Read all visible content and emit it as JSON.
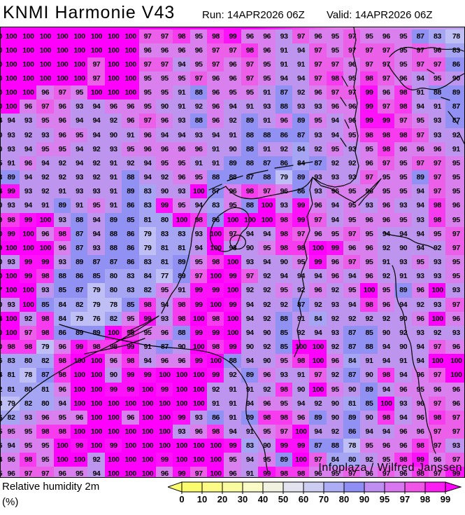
{
  "header": {
    "title": "KNMI Harmonie V43",
    "run": "Run: 14APR2026 06Z",
    "valid": "Valid: 14APR2026 06Z"
  },
  "map": {
    "attribution": "Infoplaza / Wilfred Janssen",
    "edge_digits": [
      "0",
      "0",
      "0",
      "0",
      "0",
      "0",
      "4",
      "0",
      "0",
      "5",
      "3",
      "4",
      "0",
      "9",
      "0",
      "9",
      "0",
      "0",
      "7",
      "0",
      "4",
      "0",
      "0",
      "6",
      "4",
      "2",
      "3",
      "6",
      "5",
      "6",
      "4",
      "5"
    ],
    "grid": [
      [
        100,
        100,
        100,
        100,
        100,
        100,
        100,
        100,
        97,
        97,
        98,
        95,
        98,
        99,
        96,
        96,
        93,
        97,
        96,
        95,
        97,
        95,
        96,
        95,
        87,
        83,
        78
      ],
      [
        100,
        100,
        100,
        100,
        100,
        100,
        100,
        100,
        96,
        96,
        96,
        96,
        97,
        97,
        98,
        96,
        91,
        94,
        97,
        95,
        97,
        97,
        97,
        95,
        97,
        96,
        83
      ],
      [
        100,
        100,
        100,
        100,
        100,
        97,
        100,
        100,
        97,
        97,
        94,
        95,
        97,
        96,
        97,
        95,
        91,
        91,
        97,
        97,
        96,
        97,
        97,
        95,
        97,
        97,
        86
      ],
      [
        100,
        100,
        100,
        100,
        100,
        97,
        100,
        100,
        95,
        95,
        95,
        97,
        96,
        96,
        97,
        95,
        94,
        94,
        97,
        98,
        95,
        98,
        97,
        96,
        94,
        95,
        90
      ],
      [
        100,
        100,
        96,
        97,
        95,
        100,
        100,
        100,
        95,
        95,
        91,
        88,
        96,
        95,
        95,
        91,
        87,
        92,
        96,
        97,
        97,
        99,
        96,
        98,
        91,
        88,
        89
      ],
      [
        100,
        96,
        97,
        96,
        93,
        94,
        96,
        96,
        95,
        90,
        91,
        92,
        96,
        94,
        91,
        93,
        88,
        93,
        93,
        96,
        96,
        99,
        97,
        98,
        94,
        91,
        87
      ],
      [
        94,
        93,
        95,
        96,
        94,
        94,
        92,
        96,
        97,
        96,
        93,
        88,
        96,
        92,
        89,
        91,
        96,
        89,
        95,
        94,
        96,
        99,
        99,
        97,
        95,
        93,
        87
      ],
      [
        93,
        92,
        93,
        96,
        95,
        94,
        90,
        91,
        96,
        94,
        94,
        93,
        94,
        91,
        88,
        88,
        86,
        87,
        93,
        94,
        95,
        98,
        98,
        98,
        97,
        93,
        92
      ],
      [
        93,
        94,
        95,
        95,
        94,
        92,
        93,
        95,
        96,
        96,
        96,
        96,
        91,
        90,
        88,
        91,
        92,
        84,
        92,
        95,
        93,
        95,
        98,
        96,
        96,
        96,
        91
      ],
      [
        91,
        96,
        94,
        92,
        94,
        92,
        91,
        92,
        94,
        95,
        95,
        91,
        91,
        89,
        88,
        87,
        86,
        84,
        87,
        92,
        92,
        96,
        97,
        95,
        97,
        97,
        95
      ],
      [
        89,
        94,
        92,
        92,
        93,
        92,
        91,
        88,
        94,
        92,
        96,
        95,
        88,
        88,
        87,
        88,
        79,
        89,
        93,
        93,
        93,
        97,
        95,
        95,
        89,
        97,
        95
      ],
      [
        99,
        93,
        92,
        91,
        93,
        93,
        91,
        89,
        83,
        90,
        93,
        100,
        87,
        96,
        98,
        97,
        96,
        86,
        93,
        96,
        95,
        96,
        95,
        95,
        94,
        97,
        95
      ],
      [
        93,
        94,
        91,
        89,
        91,
        95,
        91,
        86,
        83,
        99,
        95,
        94,
        83,
        95,
        88,
        100,
        93,
        99,
        96,
        94,
        95,
        93,
        96,
        93,
        94,
        98,
        96
      ],
      [
        98,
        99,
        100,
        93,
        88,
        94,
        89,
        85,
        81,
        80,
        100,
        98,
        86,
        100,
        100,
        100,
        98,
        99,
        97,
        94,
        95,
        96,
        96,
        95,
        93,
        98,
        95
      ],
      [
        99,
        100,
        96,
        98,
        87,
        94,
        88,
        86,
        79,
        83,
        83,
        93,
        100,
        97,
        94,
        94,
        98,
        97,
        96,
        95,
        97,
        95,
        94,
        94,
        94,
        95,
        97
      ],
      [
        100,
        100,
        100,
        96,
        87,
        93,
        88,
        86,
        79,
        81,
        81,
        94,
        100,
        93,
        90,
        95,
        98,
        98,
        100,
        99,
        96,
        96,
        92,
        90,
        94,
        92,
        97
      ],
      [
        93,
        99,
        99,
        93,
        89,
        87,
        87,
        86,
        83,
        81,
        89,
        95,
        98,
        100,
        93,
        94,
        90,
        95,
        99,
        96,
        97,
        95,
        91,
        93,
        95,
        93,
        95
      ],
      [
        100,
        99,
        98,
        88,
        86,
        85,
        80,
        83,
        84,
        77,
        89,
        97,
        100,
        99,
        97,
        92,
        94,
        94,
        94,
        96,
        94,
        96,
        92,
        91,
        93,
        93,
        95
      ],
      [
        100,
        100,
        93,
        85,
        87,
        79,
        80,
        83,
        82,
        95,
        91,
        99,
        99,
        100,
        92,
        92,
        95,
        92,
        96,
        92,
        95,
        100,
        95,
        89,
        96,
        100,
        93
      ],
      [
        93,
        100,
        85,
        84,
        82,
        79,
        78,
        85,
        98,
        94,
        98,
        99,
        100,
        99,
        94,
        92,
        92,
        87,
        92,
        93,
        94,
        98,
        96,
        94,
        92,
        93,
        97
      ],
      [
        100,
        92,
        98,
        84,
        79,
        76,
        82,
        95,
        99,
        93,
        98,
        100,
        98,
        100,
        94,
        92,
        88,
        91,
        84,
        92,
        92,
        92,
        92,
        90,
        96,
        100,
        96
      ],
      [
        100,
        97,
        98,
        86,
        89,
        89,
        100,
        98,
        95,
        96,
        88,
        99,
        99,
        100,
        94,
        90,
        85,
        92,
        94,
        93,
        87,
        85,
        90,
        92,
        93,
        92,
        93
      ],
      [
        98,
        98,
        79,
        96,
        99,
        98,
        98,
        99,
        91,
        87,
        90,
        100,
        98,
        99,
        90,
        92,
        85,
        100,
        100,
        92,
        87,
        88,
        94,
        90,
        94,
        97,
        96
      ],
      [
        83,
        80,
        82,
        98,
        100,
        100,
        96,
        98,
        94,
        96,
        96,
        99,
        100,
        88,
        94,
        90,
        95,
        98,
        100,
        96,
        84,
        91,
        94,
        91,
        94,
        100,
        100
      ],
      [
        81,
        78,
        87,
        98,
        100,
        100,
        90,
        99,
        99,
        100,
        100,
        100,
        99,
        92,
        89,
        96,
        93,
        91,
        97,
        92,
        87,
        90,
        98,
        94,
        96,
        97,
        100
      ],
      [
        81,
        80,
        81,
        96,
        100,
        100,
        99,
        99,
        100,
        99,
        100,
        100,
        92,
        91,
        91,
        92,
        98,
        90,
        100,
        95,
        90,
        89,
        94,
        96,
        95,
        96,
        96
      ],
      [
        79,
        82,
        80,
        94,
        100,
        100,
        100,
        100,
        100,
        100,
        100,
        100,
        91,
        91,
        94,
        96,
        95,
        94,
        92,
        90,
        81,
        85,
        100,
        93,
        96,
        97,
        96
      ],
      [
        82,
        93,
        96,
        95,
        96,
        100,
        100,
        96,
        100,
        100,
        99,
        93,
        86,
        91,
        89,
        98,
        98,
        96,
        89,
        90,
        89,
        90,
        98,
        94,
        96,
        98,
        97
      ],
      [
        95,
        95,
        98,
        98,
        100,
        100,
        100,
        100,
        100,
        100,
        93,
        96,
        98,
        94,
        91,
        95,
        97,
        100,
        94,
        92,
        86,
        94,
        94,
        96,
        96,
        97,
        97
      ],
      [
        94,
        95,
        95,
        100,
        99,
        100,
        99,
        100,
        100,
        100,
        100,
        100,
        100,
        99,
        83,
        90,
        99,
        99,
        87,
        88,
        78,
        95,
        96,
        96,
        98,
        97,
        93
      ],
      [
        96,
        98,
        95,
        100,
        100,
        92,
        100,
        100,
        100,
        99,
        100,
        100,
        100,
        95,
        94,
        95,
        89,
        100,
        97,
        84,
        80,
        92,
        95,
        98,
        99,
        96,
        97
      ],
      [
        96,
        97,
        97,
        96,
        95,
        94,
        100,
        100,
        100,
        96,
        99,
        97,
        100,
        96,
        91,
        99,
        98,
        98,
        96,
        95,
        97,
        96,
        97,
        96,
        98,
        97,
        99
      ]
    ],
    "palette": [
      {
        "max": 79,
        "color": "#BFBFF6"
      },
      {
        "max": 84,
        "color": "#A5A5F4"
      },
      {
        "max": 89,
        "color": "#9191F3"
      },
      {
        "max": 94,
        "color": "#BD94EE"
      },
      {
        "max": 96,
        "color": "#D97FEE"
      },
      {
        "max": 97,
        "color": "#EC5FE9"
      },
      {
        "max": 98,
        "color": "#F73BEF"
      },
      {
        "max": 99,
        "color": "#FC12F8"
      },
      {
        "max": 100,
        "color": "#FF00FF"
      }
    ]
  },
  "legend": {
    "label_line1": "Relative humidity 2m",
    "label_line2": "(%)",
    "ticks": [
      "0",
      "10",
      "20",
      "30",
      "40",
      "50",
      "60",
      "70",
      "80",
      "90",
      "95",
      "97",
      "98",
      "99"
    ],
    "segment_colors": [
      "#FBFB6E",
      "#FBFB86",
      "#FBFBA0",
      "#FBFBC5",
      "#F2F2E1",
      "#E3E3EF",
      "#CDCDF2",
      "#ADADF5",
      "#8E8EF5",
      "#BE8EF2",
      "#D977F0",
      "#F055E8",
      "#FB1DF1"
    ],
    "arrow_left_color": "#FBFB6E",
    "arrow_right_color": "#FF00FF"
  }
}
